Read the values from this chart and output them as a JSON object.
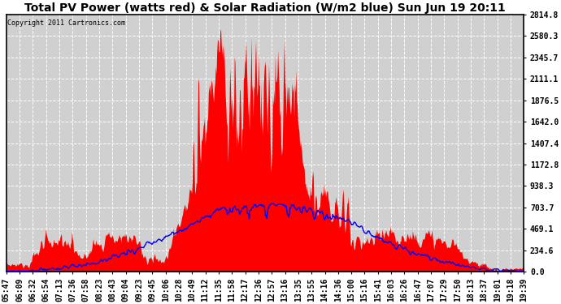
{
  "title": "Total PV Power (watts red) & Solar Radiation (W/m2 blue) Sun Jun 19 20:11",
  "copyright": "Copyright 2011 Cartronics.com",
  "y_ticks": [
    0.0,
    234.6,
    469.1,
    703.7,
    938.3,
    1172.8,
    1407.4,
    1642.0,
    1876.5,
    2111.1,
    2345.7,
    2580.3,
    2814.8
  ],
  "y_max": 2814.8,
  "x_labels": [
    "05:47",
    "06:09",
    "06:32",
    "06:54",
    "07:13",
    "07:36",
    "07:58",
    "08:23",
    "08:43",
    "09:04",
    "09:23",
    "09:45",
    "10:06",
    "10:28",
    "10:49",
    "11:12",
    "11:35",
    "11:58",
    "12:17",
    "12:36",
    "12:57",
    "13:16",
    "13:35",
    "13:55",
    "14:16",
    "14:36",
    "15:00",
    "15:16",
    "15:41",
    "16:03",
    "16:26",
    "16:47",
    "17:07",
    "17:29",
    "17:50",
    "18:13",
    "18:37",
    "19:01",
    "19:18",
    "19:39"
  ],
  "bg_color": "#ffffff",
  "plot_bg": "#d0d0d0",
  "grid_color": "#ffffff",
  "red_color": "#ff0000",
  "blue_color": "#0000ff",
  "title_fontsize": 10,
  "tick_fontsize": 7,
  "fig_width": 6.9,
  "fig_height": 3.75,
  "dpi": 100
}
